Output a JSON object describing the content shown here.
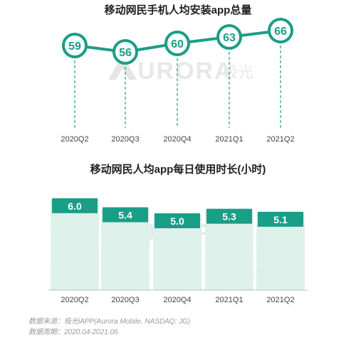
{
  "watermark": {
    "brand": "URORA",
    "cn": "极光"
  },
  "chart_data": [
    {
      "type": "line",
      "title": "移动网民手机人均安装app总量",
      "categories": [
        "2020Q2",
        "2020Q3",
        "2020Q4",
        "2021Q1",
        "2021Q2"
      ],
      "values": [
        59,
        56,
        60,
        63,
        66
      ],
      "color": "#1a9e87",
      "grid": false
    },
    {
      "type": "bar",
      "title": "移动网民人均app每日使用时长(小时)",
      "categories": [
        "2020Q2",
        "2020Q3",
        "2020Q4",
        "2021Q1",
        "2021Q2"
      ],
      "values": [
        6.0,
        5.4,
        5.0,
        5.3,
        5.1
      ],
      "labels": [
        "6.0",
        "5.4",
        "5.0",
        "5.3",
        "5.1"
      ],
      "color": "#1a9e87",
      "grid": false
    }
  ],
  "footer": {
    "source": "数据来源：极光iAPP(Aurora Mobile, NASDAQ: JG)",
    "period": "数据周期：2020.04-2021.06"
  }
}
